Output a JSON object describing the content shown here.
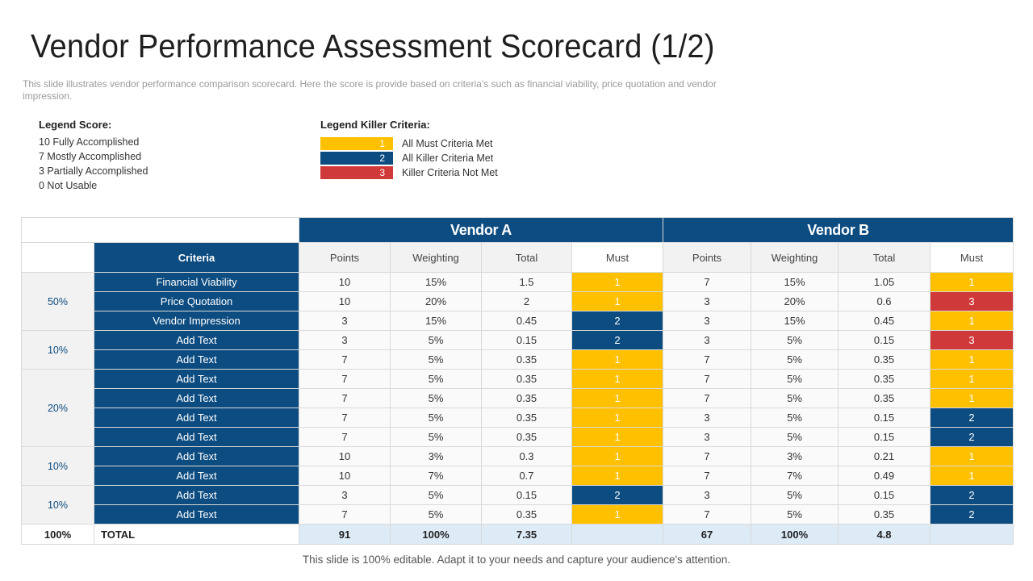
{
  "title": "Vendor Performance Assessment Scorecard (1/2)",
  "subtitle": "This slide illustrates vendor performance comparison scorecard. Here the score is provide based on criteria's such as financial viability, price quotation and vendor impression.",
  "legend_score": {
    "heading": "Legend Score:",
    "items": [
      "10 Fully Accomplished",
      "7 Mostly Accomplished",
      "3 Partially Accomplished",
      "0 Not Usable"
    ]
  },
  "legend_killer": {
    "heading": "Legend Killer Criteria:",
    "items": [
      {
        "value": "1",
        "label": "All Must Criteria Met",
        "color": "#ffc000"
      },
      {
        "value": "2",
        "label": "All Killer Criteria Met",
        "color": "#0d4c80"
      },
      {
        "value": "3",
        "label": "Killer Criteria Not Met",
        "color": "#d0393a"
      }
    ]
  },
  "table": {
    "vendor_a": "Vendor A",
    "vendor_b": "Vendor B",
    "criteria_header": "Criteria",
    "col_headers": {
      "points": "Points",
      "weighting": "Weighting",
      "total": "Total",
      "must": "Must"
    },
    "groups": [
      "50%",
      "10%",
      "20%",
      "10%",
      "10%"
    ],
    "rows": [
      {
        "criteria": "Financial Viability",
        "a_points": "10",
        "a_weight": "15%",
        "a_total": "1.5",
        "a_must": "1",
        "b_points": "7",
        "b_weight": "15%",
        "b_total": "1.05",
        "b_must": "1"
      },
      {
        "criteria": "Price Quotation",
        "a_points": "10",
        "a_weight": "20%",
        "a_total": "2",
        "a_must": "1",
        "b_points": "3",
        "b_weight": "20%",
        "b_total": "0.6",
        "b_must": "3"
      },
      {
        "criteria": "Vendor Impression",
        "a_points": "3",
        "a_weight": "15%",
        "a_total": "0.45",
        "a_must": "2",
        "b_points": "3",
        "b_weight": "15%",
        "b_total": "0.45",
        "b_must": "1"
      },
      {
        "criteria": "Add Text",
        "a_points": "3",
        "a_weight": "5%",
        "a_total": "0.15",
        "a_must": "2",
        "b_points": "3",
        "b_weight": "5%",
        "b_total": "0.15",
        "b_must": "3"
      },
      {
        "criteria": "Add Text",
        "a_points": "7",
        "a_weight": "5%",
        "a_total": "0.35",
        "a_must": "1",
        "b_points": "7",
        "b_weight": "5%",
        "b_total": "0.35",
        "b_must": "1"
      },
      {
        "criteria": "Add Text",
        "a_points": "7",
        "a_weight": "5%",
        "a_total": "0.35",
        "a_must": "1",
        "b_points": "7",
        "b_weight": "5%",
        "b_total": "0.35",
        "b_must": "1"
      },
      {
        "criteria": "Add Text",
        "a_points": "7",
        "a_weight": "5%",
        "a_total": "0.35",
        "a_must": "1",
        "b_points": "7",
        "b_weight": "5%",
        "b_total": "0.35",
        "b_must": "1"
      },
      {
        "criteria": "Add Text",
        "a_points": "7",
        "a_weight": "5%",
        "a_total": "0.35",
        "a_must": "1",
        "b_points": "3",
        "b_weight": "5%",
        "b_total": "0.15",
        "b_must": "2"
      },
      {
        "criteria": "Add Text",
        "a_points": "7",
        "a_weight": "5%",
        "a_total": "0.35",
        "a_must": "1",
        "b_points": "3",
        "b_weight": "5%",
        "b_total": "0.15",
        "b_must": "2"
      },
      {
        "criteria": "Add Text",
        "a_points": "10",
        "a_weight": "3%",
        "a_total": "0.3",
        "a_must": "1",
        "b_points": "7",
        "b_weight": "3%",
        "b_total": "0.21",
        "b_must": "1"
      },
      {
        "criteria": "Add Text",
        "a_points": "10",
        "a_weight": "7%",
        "a_total": "0.7",
        "a_must": "1",
        "b_points": "7",
        "b_weight": "7%",
        "b_total": "0.49",
        "b_must": "1"
      },
      {
        "criteria": "Add Text",
        "a_points": "3",
        "a_weight": "5%",
        "a_total": "0.15",
        "a_must": "2",
        "b_points": "3",
        "b_weight": "5%",
        "b_total": "0.15",
        "b_must": "2"
      },
      {
        "criteria": "Add Text",
        "a_points": "7",
        "a_weight": "5%",
        "a_total": "0.35",
        "a_must": "1",
        "b_points": "7",
        "b_weight": "5%",
        "b_total": "0.35",
        "b_must": "2"
      }
    ],
    "total": {
      "group": "100%",
      "label": "TOTAL",
      "a_points": "91",
      "a_weight": "100%",
      "a_total": "7.35",
      "b_points": "67",
      "b_weight": "100%",
      "b_total": "4.8"
    }
  },
  "footer": "This slide is 100% editable. Adapt it to your needs and capture your audience's attention."
}
